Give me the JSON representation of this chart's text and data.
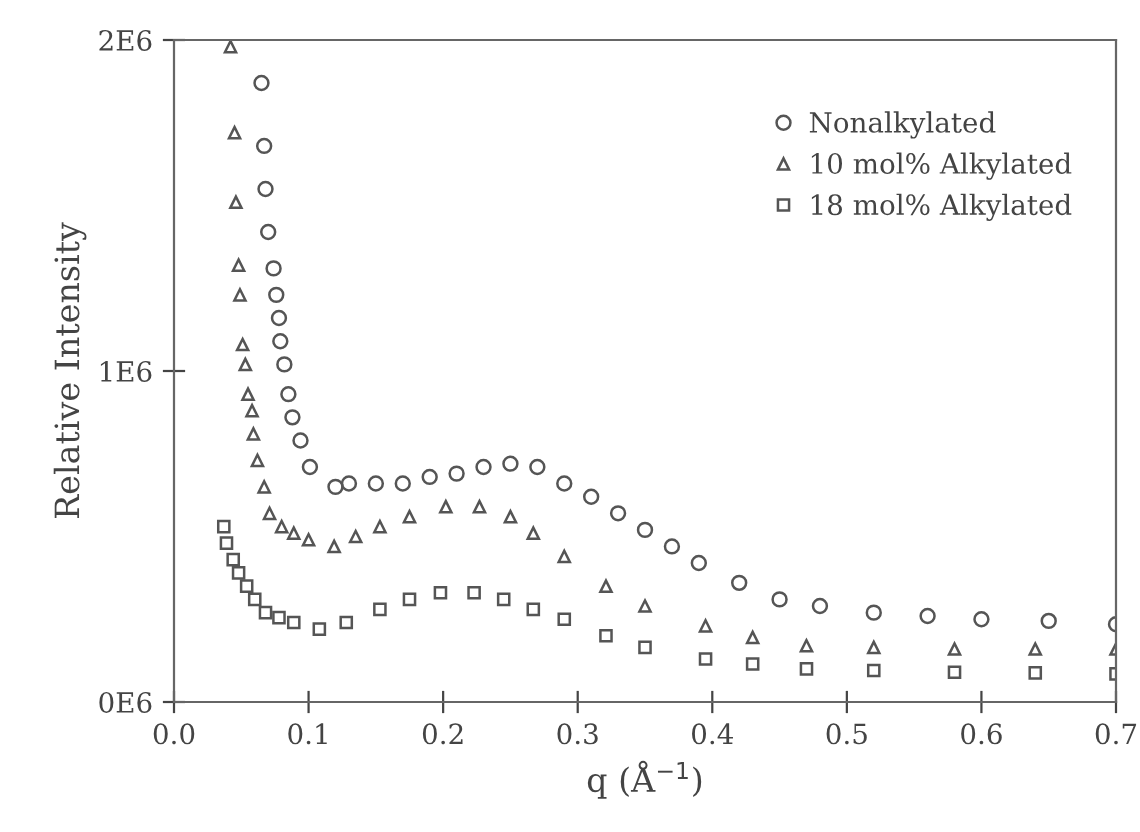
{
  "chart_data": {
    "type": "scatter",
    "xlabel": "q (Å$^{−1}$)",
    "ylabel": "Relative Intensity",
    "xlim": [
      0,
      0.7
    ],
    "ylim": [
      0,
      2000000
    ],
    "xticks": [
      {
        "value": 0,
        "label": "0.0"
      },
      0.1,
      0.2,
      0.3,
      0.4,
      0.5,
      0.6,
      0.7
    ],
    "yticks": [
      {
        "value": 0,
        "label": "0E6"
      },
      {
        "value": 1000000,
        "label": "1E6"
      },
      {
        "value": 2000000,
        "label": "2E6"
      }
    ],
    "grid": false,
    "legend": "top right",
    "series": [
      {
        "name": "Nonalkylated",
        "color": "#555555",
        "marker": "circle",
        "x": [
          0.065,
          0.067,
          0.068,
          0.07,
          0.074,
          0.076,
          0.078,
          0.079,
          0.082,
          0.085,
          0.088,
          0.094,
          0.101,
          0.12,
          0.13,
          0.15,
          0.17,
          0.19,
          0.21,
          0.23,
          0.25,
          0.27,
          0.29,
          0.31,
          0.33,
          0.35,
          0.37,
          0.39,
          0.42,
          0.45,
          0.48,
          0.52,
          0.56,
          0.6,
          0.65,
          0.7
        ],
        "values": [
          1870000,
          1680000,
          1550000,
          1420000,
          1310000,
          1230000,
          1160000,
          1090000,
          1020000,
          930000,
          860000,
          790000,
          710000,
          650000,
          660000,
          660000,
          660000,
          680000,
          690000,
          710000,
          720000,
          710000,
          660000,
          620000,
          570000,
          520000,
          470000,
          420000,
          360000,
          310000,
          290000,
          270000,
          260000,
          250000,
          245000,
          235000
        ]
      },
      {
        "name": "10 mol% Alkylated",
        "color": "#555555",
        "marker": "triangle",
        "x": [
          0.042,
          0.045,
          0.046,
          0.048,
          0.049,
          0.051,
          0.053,
          0.055,
          0.058,
          0.059,
          0.062,
          0.067,
          0.071,
          0.08,
          0.089,
          0.1,
          0.119,
          0.135,
          0.153,
          0.175,
          0.202,
          0.227,
          0.25,
          0.267,
          0.29,
          0.321,
          0.35,
          0.395,
          0.43,
          0.47,
          0.52,
          0.58,
          0.64,
          0.7
        ],
        "values": [
          1980000,
          1720000,
          1510000,
          1320000,
          1230000,
          1080000,
          1020000,
          930000,
          880000,
          810000,
          730000,
          650000,
          570000,
          530000,
          510000,
          490000,
          470000,
          500000,
          530000,
          560000,
          590000,
          590000,
          560000,
          510000,
          440000,
          350000,
          290000,
          230000,
          195000,
          170000,
          165000,
          160000,
          160000,
          160000
        ]
      },
      {
        "name": "18 mol% Alkylated",
        "color": "#555555",
        "marker": "square",
        "x": [
          0.037,
          0.039,
          0.044,
          0.048,
          0.054,
          0.06,
          0.068,
          0.078,
          0.089,
          0.108,
          0.128,
          0.153,
          0.175,
          0.198,
          0.223,
          0.245,
          0.267,
          0.29,
          0.321,
          0.35,
          0.395,
          0.43,
          0.47,
          0.52,
          0.58,
          0.64,
          0.7
        ],
        "values": [
          530000,
          480000,
          430000,
          390000,
          350000,
          310000,
          270000,
          255000,
          240000,
          220000,
          240000,
          280000,
          310000,
          330000,
          330000,
          310000,
          280000,
          250000,
          200000,
          165000,
          130000,
          115000,
          100000,
          95000,
          90000,
          88000,
          85000
        ]
      }
    ]
  }
}
